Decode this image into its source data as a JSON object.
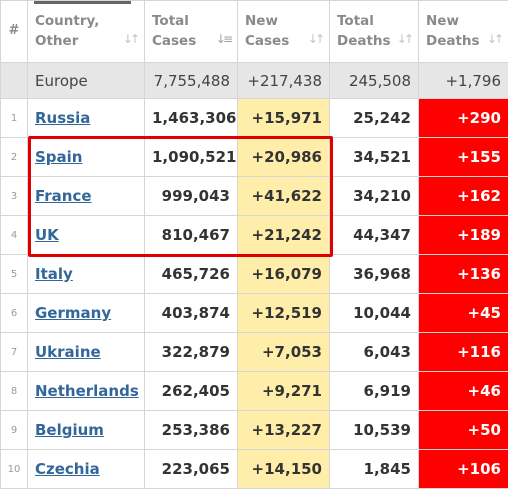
{
  "headers": {
    "idx": "#",
    "country": [
      "Country,",
      "Other"
    ],
    "total_cases": [
      "Total",
      "Cases"
    ],
    "new_cases": [
      "New",
      "Cases"
    ],
    "total_deaths": [
      "Total",
      "Deaths"
    ],
    "new_deaths": [
      "New",
      "Deaths"
    ]
  },
  "total_row": {
    "name": "Europe",
    "total_cases": "7,755,488",
    "new_cases": "+217,438",
    "total_deaths": "245,508",
    "new_deaths": "+1,796"
  },
  "rows": [
    {
      "idx": "1",
      "name": "Russia",
      "total_cases": "1,463,306",
      "new_cases": "+15,971",
      "total_deaths": "25,242",
      "new_deaths": "+290"
    },
    {
      "idx": "2",
      "name": "Spain",
      "total_cases": "1,090,521",
      "new_cases": "+20,986",
      "total_deaths": "34,521",
      "new_deaths": "+155"
    },
    {
      "idx": "3",
      "name": "France",
      "total_cases": "999,043",
      "new_cases": "+41,622",
      "total_deaths": "34,210",
      "new_deaths": "+162"
    },
    {
      "idx": "4",
      "name": "UK",
      "total_cases": "810,467",
      "new_cases": "+21,242",
      "total_deaths": "44,347",
      "new_deaths": "+189"
    },
    {
      "idx": "5",
      "name": "Italy",
      "total_cases": "465,726",
      "new_cases": "+16,079",
      "total_deaths": "36,968",
      "new_deaths": "+136"
    },
    {
      "idx": "6",
      "name": "Germany",
      "total_cases": "403,874",
      "new_cases": "+12,519",
      "total_deaths": "10,044",
      "new_deaths": "+45"
    },
    {
      "idx": "7",
      "name": "Ukraine",
      "total_cases": "322,879",
      "new_cases": "+7,053",
      "total_deaths": "6,043",
      "new_deaths": "+116"
    },
    {
      "idx": "8",
      "name": "Netherlands",
      "total_cases": "262,405",
      "new_cases": "+9,271",
      "total_deaths": "6,919",
      "new_deaths": "+46"
    },
    {
      "idx": "9",
      "name": "Belgium",
      "total_cases": "253,386",
      "new_cases": "+13,227",
      "total_deaths": "10,539",
      "new_deaths": "+50"
    },
    {
      "idx": "10",
      "name": "Czechia",
      "total_cases": "223,065",
      "new_cases": "+14,150",
      "total_deaths": "1,845",
      "new_deaths": "+106"
    }
  ],
  "icons": {
    "sort": "sort-arrows-icon",
    "sort_active": "sort-descending-icon"
  },
  "colors": {
    "new_cases_bg": "#ffeeaa",
    "new_deaths_bg": "#ff0000",
    "link": "#336699",
    "highlight_box": "#e00000"
  }
}
